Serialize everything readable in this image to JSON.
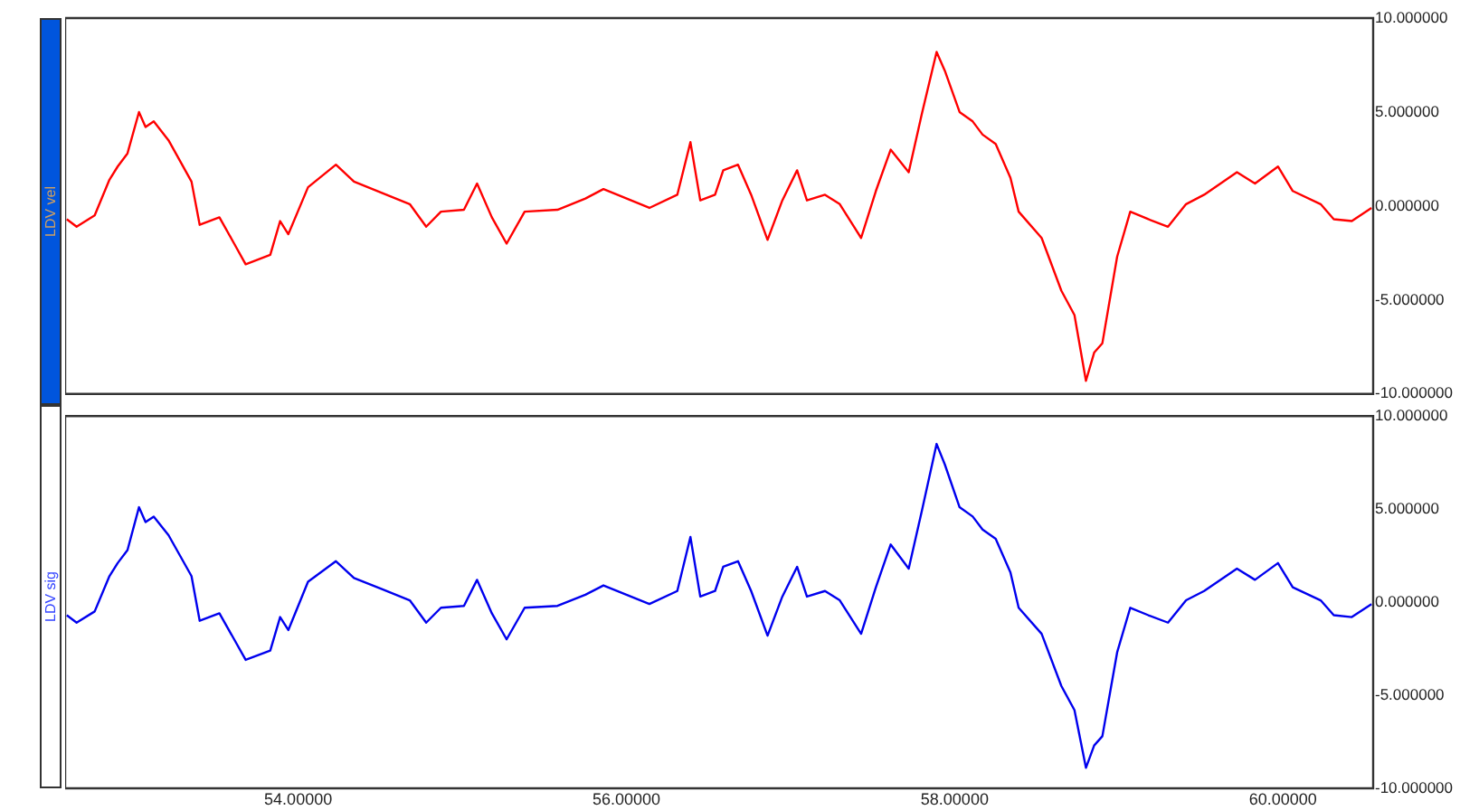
{
  "chart_data": [
    {
      "type": "line",
      "ylabel": "LDV vel",
      "tick_labels": "y",
      "grid": false,
      "legend": false,
      "marker": "none",
      "line_style": "solid",
      "xlim": [
        52.58,
        60.55
      ],
      "ylim": [
        -10,
        10
      ],
      "yticks": [
        {
          "value": 10,
          "label": "10.000000"
        },
        {
          "value": 5,
          "label": "5.000000"
        },
        {
          "value": 0,
          "label": "0.000000"
        },
        {
          "value": -5,
          "label": "-5.000000"
        },
        {
          "value": -10,
          "label": "-10.000000"
        }
      ],
      "x": [
        52.59,
        52.65,
        52.76,
        52.85,
        52.9,
        52.96,
        53.03,
        53.07,
        53.12,
        53.21,
        53.35,
        53.4,
        53.52,
        53.61,
        53.68,
        53.83,
        53.89,
        53.94,
        54.06,
        54.23,
        54.34,
        54.51,
        54.68,
        54.78,
        54.87,
        55.01,
        55.09,
        55.18,
        55.27,
        55.38,
        55.58,
        55.75,
        55.86,
        56.14,
        56.31,
        56.39,
        56.45,
        56.54,
        56.59,
        56.68,
        56.76,
        56.86,
        56.95,
        57.04,
        57.1,
        57.21,
        57.3,
        57.43,
        57.52,
        57.61,
        57.72,
        57.8,
        57.89,
        57.94,
        58.03,
        58.11,
        58.17,
        58.25,
        58.34,
        58.39,
        58.53,
        58.65,
        58.73,
        58.8,
        58.85,
        58.9,
        58.99,
        59.07,
        59.18,
        59.3,
        59.41,
        59.52,
        59.72,
        59.83,
        59.97,
        60.06,
        60.23,
        60.31,
        60.42,
        60.54
      ],
      "series": [
        {
          "color": "#ff0000",
          "values": [
            -0.7,
            -1.1,
            -0.5,
            1.4,
            2.1,
            2.8,
            5.0,
            4.2,
            4.5,
            3.5,
            1.3,
            -1.0,
            -0.6,
            -2.0,
            -3.1,
            -2.6,
            -0.8,
            -1.5,
            1.0,
            2.2,
            1.3,
            0.7,
            0.1,
            -1.1,
            -0.3,
            -0.2,
            1.2,
            -0.6,
            -2.0,
            -0.3,
            -0.2,
            0.4,
            0.9,
            -0.1,
            0.6,
            3.4,
            0.3,
            0.6,
            1.9,
            2.2,
            0.6,
            -1.8,
            0.3,
            1.9,
            0.3,
            0.6,
            0.1,
            -1.7,
            0.8,
            3.0,
            1.8,
            4.9,
            8.2,
            7.2,
            5.0,
            4.5,
            3.8,
            3.3,
            1.5,
            -0.3,
            -1.7,
            -4.5,
            -5.8,
            -9.3,
            -7.8,
            -7.3,
            -2.7,
            -0.3,
            -0.7,
            -1.1,
            0.1,
            0.6,
            1.8,
            1.2,
            2.1,
            0.8,
            0.1,
            -0.7,
            -0.8,
            -0.1
          ]
        }
      ]
    },
    {
      "type": "line",
      "ylabel": "LDV sig",
      "grid": false,
      "legend": false,
      "marker": "none",
      "line_style": "solid",
      "xlim": [
        52.58,
        60.55
      ],
      "ylim": [
        -10,
        10
      ],
      "xticks": [
        {
          "value": 54,
          "label": "54.00000"
        },
        {
          "value": 56,
          "label": "56.00000"
        },
        {
          "value": 58,
          "label": "58.00000"
        },
        {
          "value": 60,
          "label": "60.00000"
        }
      ],
      "yticks": [
        {
          "value": 10,
          "label": "10.000000"
        },
        {
          "value": 5,
          "label": "5.000000"
        },
        {
          "value": 0,
          "label": "0.000000"
        },
        {
          "value": -5,
          "label": "-5.000000"
        },
        {
          "value": -10,
          "label": "-10.000000"
        }
      ],
      "x": [
        52.59,
        52.65,
        52.76,
        52.85,
        52.9,
        52.96,
        53.03,
        53.07,
        53.12,
        53.21,
        53.35,
        53.4,
        53.52,
        53.61,
        53.68,
        53.83,
        53.89,
        53.94,
        54.06,
        54.23,
        54.34,
        54.51,
        54.68,
        54.78,
        54.87,
        55.01,
        55.09,
        55.18,
        55.27,
        55.38,
        55.58,
        55.75,
        55.86,
        56.14,
        56.31,
        56.39,
        56.45,
        56.54,
        56.59,
        56.68,
        56.76,
        56.86,
        56.95,
        57.04,
        57.1,
        57.21,
        57.3,
        57.43,
        57.52,
        57.61,
        57.72,
        57.8,
        57.89,
        57.94,
        58.03,
        58.11,
        58.17,
        58.25,
        58.34,
        58.39,
        58.53,
        58.65,
        58.73,
        58.8,
        58.85,
        58.9,
        58.99,
        59.07,
        59.18,
        59.3,
        59.41,
        59.52,
        59.72,
        59.83,
        59.97,
        60.06,
        60.23,
        60.31,
        60.42,
        60.54
      ],
      "series": [
        {
          "color": "#0000ee",
          "values": [
            -0.7,
            -1.1,
            -0.5,
            1.4,
            2.1,
            2.8,
            5.1,
            4.3,
            4.6,
            3.6,
            1.4,
            -1.0,
            -0.6,
            -2.0,
            -3.1,
            -2.6,
            -0.8,
            -1.5,
            1.1,
            2.2,
            1.3,
            0.7,
            0.1,
            -1.1,
            -0.3,
            -0.2,
            1.2,
            -0.6,
            -2.0,
            -0.3,
            -0.2,
            0.4,
            0.9,
            -0.1,
            0.6,
            3.5,
            0.3,
            0.6,
            1.9,
            2.2,
            0.6,
            -1.8,
            0.3,
            1.9,
            0.3,
            0.6,
            0.1,
            -1.7,
            0.8,
            3.1,
            1.8,
            4.9,
            8.5,
            7.4,
            5.1,
            4.6,
            3.9,
            3.4,
            1.6,
            -0.3,
            -1.7,
            -4.5,
            -5.8,
            -8.9,
            -7.7,
            -7.2,
            -2.7,
            -0.3,
            -0.7,
            -1.1,
            0.1,
            0.6,
            1.8,
            1.2,
            2.1,
            0.8,
            0.1,
            -0.7,
            -0.8,
            -0.1
          ]
        }
      ]
    }
  ]
}
